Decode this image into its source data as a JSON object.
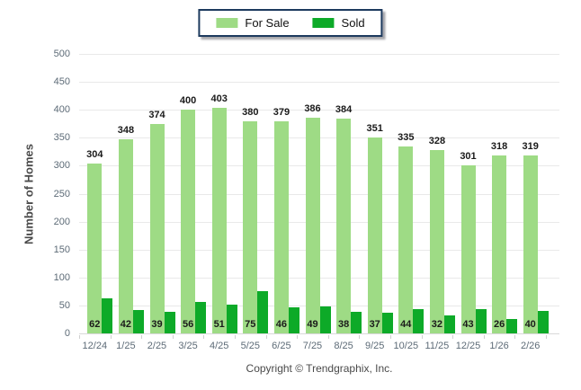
{
  "legend": {
    "items": [
      {
        "label": "For Sale",
        "color": "#9edb85"
      },
      {
        "label": "Sold",
        "color": "#0daa28"
      }
    ]
  },
  "chart_data": {
    "type": "bar",
    "title": "",
    "categories": [
      "12/24",
      "1/25",
      "2/25",
      "3/25",
      "4/25",
      "5/25",
      "6/25",
      "7/25",
      "8/25",
      "9/25",
      "10/25",
      "11/25",
      "12/25",
      "1/26",
      "2/26"
    ],
    "series": [
      {
        "name": "For Sale",
        "color": "#9edb85",
        "values": [
          304,
          348,
          374,
          400,
          403,
          380,
          379,
          386,
          384,
          351,
          335,
          328,
          301,
          318,
          319
        ]
      },
      {
        "name": "Sold",
        "color": "#0daa28",
        "values": [
          62,
          42,
          39,
          56,
          51,
          75,
          46,
          49,
          38,
          37,
          44,
          32,
          43,
          26,
          40
        ]
      }
    ],
    "xlabel": "",
    "ylabel": "Number of Homes",
    "ylim": [
      0,
      500
    ],
    "yticks": [
      0,
      50,
      100,
      150,
      200,
      250,
      300,
      350,
      400,
      450,
      500
    ],
    "grid": true,
    "legend_position": "top-center",
    "bar_value_labels": true
  },
  "footer": {
    "copyright_text": "Copyright © Trendgraphix, Inc."
  },
  "colors": {
    "for_sale": "#9edb85",
    "sold": "#0daa28",
    "gridline": "#e9e9e9",
    "axis_line": "#d9d9d9",
    "tick_label": "#5d6b77",
    "value_label": "#1a1a1a",
    "legend_border": "#1d3a5e",
    "footer_text": "#4a4a4a"
  }
}
